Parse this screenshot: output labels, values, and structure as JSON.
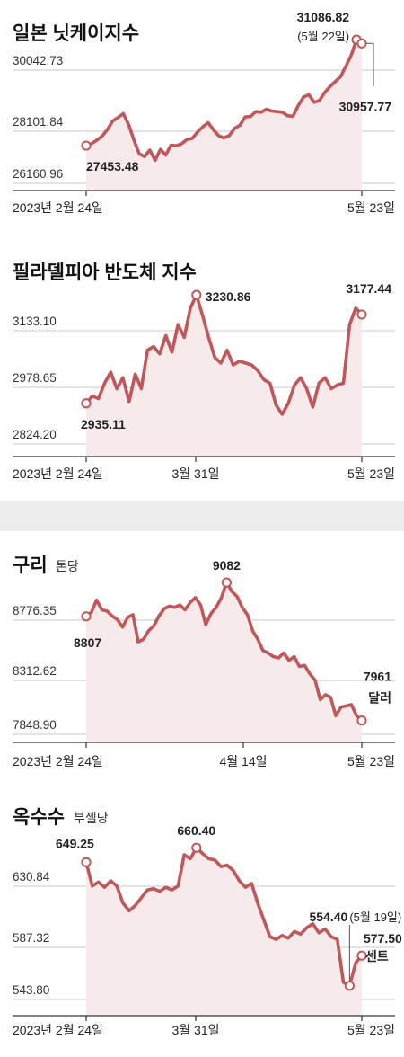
{
  "charts": [
    {
      "title": "일본 닛케이지수",
      "unit": "",
      "yticks": [
        "30042.73",
        "28101.84",
        "26160.96"
      ],
      "xlabels": [
        "2023년 2월 24일",
        "5월 23일"
      ],
      "labels": {
        "start": "27453.48",
        "peak": "31086.82",
        "peak_date": "(5월 22일)",
        "end": "30957.77"
      }
    },
    {
      "title": "필라델피아 반도체 지수",
      "unit": "",
      "yticks": [
        "3133.10",
        "2978.65",
        "2824.20"
      ],
      "xlabels": [
        "2023년 2월 24일",
        "3월 31일",
        "5월 23일"
      ],
      "labels": {
        "start": "2935.11",
        "peak": "3230.86",
        "end": "3177.44"
      }
    },
    {
      "title": "구리",
      "unit": "톤당",
      "yticks": [
        "8776.35",
        "8312.62",
        "7848.90"
      ],
      "xlabels": [
        "2023년 2월 24일",
        "4월 14일",
        "5월 23일"
      ],
      "labels": {
        "start": "8807",
        "peak": "9082",
        "end": "7961",
        "end_unit": "달러"
      }
    },
    {
      "title": "옥수수",
      "unit": "부셸당",
      "yticks": [
        "630.84",
        "587.32",
        "543.80"
      ],
      "xlabels": [
        "2023년 2월 24일",
        "3월 31일",
        "5월 23일"
      ],
      "labels": {
        "start": "649.25",
        "peak": "660.40",
        "low": "554.40",
        "low_date": "(5월 19일)",
        "end": "577.50",
        "end_unit": "센트"
      }
    }
  ],
  "chart_data": [
    {
      "type": "line",
      "title": "일본 닛케이지수",
      "x_range": [
        "2023-02-24",
        "2023-05-23"
      ],
      "yticks": [
        26160.96,
        28101.84,
        30042.73
      ],
      "series": [
        {
          "values": [
            27453.48,
            27520,
            27640,
            27780,
            28000,
            28300,
            28420,
            28550,
            28180,
            27650,
            27180,
            27080,
            27300,
            26950,
            27330,
            27130,
            27470,
            27450,
            27520,
            27660,
            27700,
            27920,
            28100,
            28240,
            28000,
            27790,
            27720,
            27800,
            28050,
            28150,
            28440,
            28450,
            28620,
            28600,
            28700,
            28640,
            28620,
            28600,
            28480,
            28460,
            28830,
            29120,
            29200,
            28940,
            29000,
            29280,
            29480,
            29650,
            29820,
            30180,
            30550,
            31086.82,
            30957.77
          ]
        }
      ]
    },
    {
      "type": "line",
      "title": "필라델피아 반도체 지수",
      "x_range": [
        "2023-02-24",
        "2023-05-23"
      ],
      "yticks": [
        2824.2,
        2978.65,
        3133.1
      ],
      "series": [
        {
          "values": [
            2935.11,
            2955,
            2948,
            2990,
            3020,
            2975,
            3005,
            2940,
            3015,
            2975,
            3080,
            3090,
            3070,
            3120,
            3075,
            3150,
            3115,
            3195,
            3230.86,
            3175,
            3115,
            3060,
            3045,
            3080,
            3040,
            3050,
            3045,
            3040,
            3025,
            3000,
            2990,
            2930,
            2905,
            2935,
            2985,
            3005,
            2975,
            2925,
            2990,
            3005,
            2975,
            2985,
            2990,
            3150,
            3195,
            3177.44
          ]
        }
      ]
    },
    {
      "type": "line",
      "title": "구리",
      "x_range": [
        "2023-02-24",
        "2023-05-23"
      ],
      "yticks": [
        7848.9,
        8312.62,
        8776.35
      ],
      "series": [
        {
          "values": [
            8807,
            8840,
            8940,
            8860,
            8850,
            8810,
            8780,
            8720,
            8800,
            8820,
            8600,
            8620,
            8690,
            8730,
            8810,
            8870,
            8890,
            8880,
            8900,
            8860,
            8920,
            8960,
            8900,
            8740,
            8830,
            8880,
            8960,
            9082,
            9010,
            8970,
            8880,
            8820,
            8690,
            8620,
            8530,
            8510,
            8480,
            8470,
            8510,
            8450,
            8480,
            8400,
            8410,
            8340,
            8290,
            8130,
            8170,
            8150,
            8000,
            8070,
            8080,
            8090,
            8000,
            7961
          ]
        }
      ]
    },
    {
      "type": "line",
      "title": "옥수수",
      "x_range": [
        "2023-02-24",
        "2023-05-23"
      ],
      "yticks": [
        543.8,
        587.32,
        630.84
      ],
      "series": [
        {
          "values": [
            649.25,
            631,
            634,
            630,
            635,
            631,
            618,
            612,
            616,
            622,
            628,
            629,
            627,
            630,
            628,
            631,
            655,
            652,
            660.4,
            656,
            652,
            651,
            646,
            647,
            643,
            635,
            630,
            633,
            618,
            605,
            592,
            590,
            593,
            591,
            596,
            594,
            599,
            602,
            595,
            598,
            592,
            590,
            557,
            554.4,
            572,
            577.5
          ]
        }
      ]
    }
  ]
}
